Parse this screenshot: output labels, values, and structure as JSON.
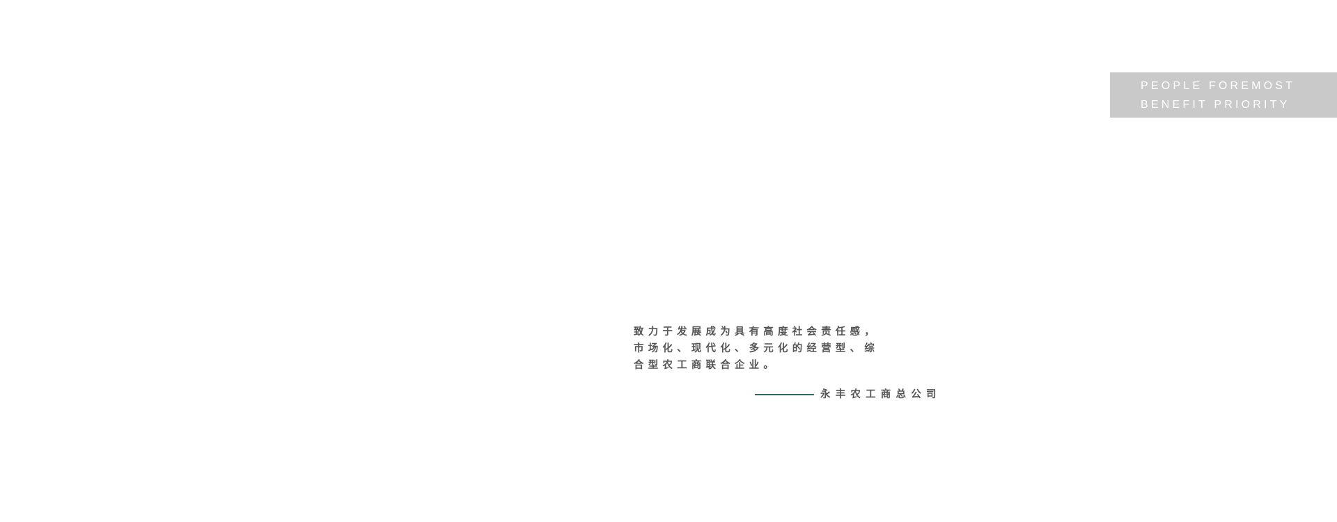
{
  "badge": {
    "line1": "PEOPLE FOREMOST",
    "line2": "BENEFIT PRIORITY",
    "background": "#c8c9c8"
  },
  "motto": {
    "lines": [
      "致力于发展成为具有高度社会责任感，",
      "市场化、现代化、多元化的经营型、综",
      "合型农工商联合企业。"
    ]
  },
  "signature": {
    "company": "永丰农工商总公司",
    "line_color": "#2f6b62"
  }
}
